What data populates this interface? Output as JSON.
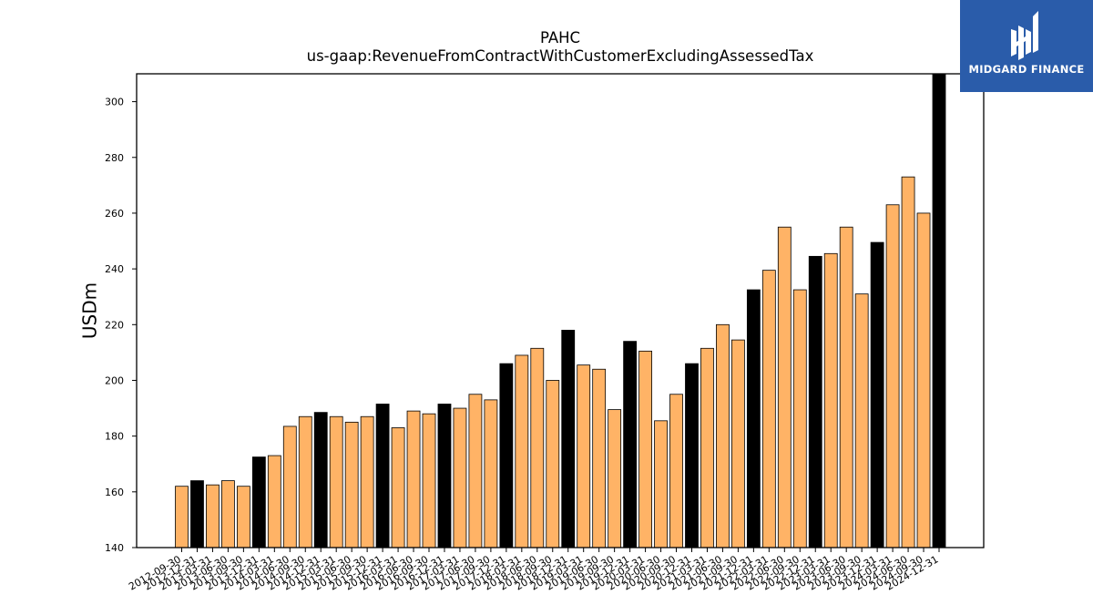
{
  "brand": {
    "logo_text": "MIDGARD FINANCE",
    "logo_color": "#2a5caa"
  },
  "chart_data": {
    "type": "bar",
    "title": "PAHC",
    "subtitle": "us-gaap:RevenueFromContractWithCustomerExcludingAssessedTax",
    "xlabel": "",
    "ylabel": "USDm",
    "ylim": [
      140,
      310
    ],
    "yticks": [
      140,
      160,
      180,
      200,
      220,
      240,
      260,
      280,
      300
    ],
    "grid": false,
    "colors": {
      "quarter": "#ffb366",
      "fiscal_year_end": "#000000",
      "edge": "#000000"
    },
    "categories": [
      "2012-09-30",
      "2012-12-31",
      "2013-03-31",
      "2013-06-30",
      "2013-09-30",
      "2013-12-31",
      "2014-03-31",
      "2014-06-30",
      "2014-09-30",
      "2014-12-31",
      "2015-03-31",
      "2015-06-30",
      "2015-09-30",
      "2015-12-31",
      "2016-03-31",
      "2016-06-30",
      "2016-09-30",
      "2016-12-31",
      "2017-03-31",
      "2017-06-30",
      "2017-09-30",
      "2017-12-31",
      "2018-03-31",
      "2018-06-30",
      "2018-09-30",
      "2018-12-31",
      "2019-03-31",
      "2019-06-30",
      "2019-09-30",
      "2019-12-31",
      "2020-03-31",
      "2020-06-30",
      "2020-09-30",
      "2020-12-31",
      "2021-03-31",
      "2021-06-30",
      "2021-09-30",
      "2021-12-31",
      "2022-03-31",
      "2022-06-30",
      "2022-09-30",
      "2022-12-31",
      "2023-03-31",
      "2023-06-30",
      "2023-09-30",
      "2023-12-31",
      "2024-03-31",
      "2024-06-30",
      "2024-09-30",
      "2024-12-31"
    ],
    "tick_labels": [
      "2012-09-30",
      "2012-12-31",
      "2013-03-31",
      "2013-06-30",
      "2013-09-30",
      "2013-12-31",
      "2014-03-31",
      "2014-06-30",
      "2014-09-30",
      "2014-12-31",
      "2015-03-31",
      "2015-06-30",
      "2015-09-30",
      "2015-12-31",
      "2016-03-31",
      "2016-06-30",
      "2016-09-30",
      "2016-12-31",
      "2017-03-31",
      "2017-06-30",
      "2017-09-30",
      "2017-12-31",
      "2018-03-31",
      "2018-06-30",
      "2018-09-30",
      "2018-12-31",
      "2019-03-31",
      "2019-06-30",
      "2019-09-30",
      "2019-12-31",
      "2020-03-31",
      "2020-06-30",
      "2020-09-30",
      "2020-12-31",
      "2021-03-31",
      "2021-06-30",
      "2021-09-30",
      "2021-12-31",
      "2022-03-31",
      "2022-06-30",
      "2022-09-30",
      "2022-12-31",
      "2023-03-31",
      "2023-06-30",
      "2023-09-30",
      "2023-12-31",
      "2024-03-31",
      "2024-06-30",
      "2024-09-30",
      "2024-12-31"
    ],
    "values": [
      162,
      164,
      162.5,
      164,
      162,
      172.5,
      173,
      183.5,
      187,
      188.5,
      187,
      185,
      187,
      191.5,
      183,
      189,
      188,
      191.5,
      190,
      195,
      193,
      206,
      209,
      211.5,
      200,
      218,
      205.5,
      204,
      189.5,
      214,
      210.5,
      185.5,
      195,
      206,
      211.5,
      220,
      214.5,
      232.5,
      239.5,
      255,
      232.5,
      244.5,
      245.5,
      255,
      231,
      249.5,
      263,
      273,
      260,
      310
    ],
    "highlight": [
      false,
      true,
      false,
      false,
      false,
      true,
      false,
      false,
      false,
      true,
      false,
      false,
      false,
      true,
      false,
      false,
      false,
      true,
      false,
      false,
      false,
      true,
      false,
      false,
      false,
      true,
      false,
      false,
      false,
      true,
      false,
      false,
      false,
      true,
      false,
      false,
      false,
      true,
      false,
      false,
      false,
      true,
      false,
      false,
      false,
      true,
      false,
      false,
      false,
      true
    ]
  }
}
